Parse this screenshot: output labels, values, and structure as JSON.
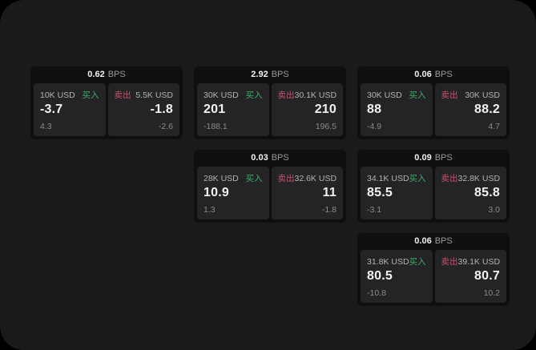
{
  "labels": {
    "bps_unit": "BPS",
    "buy": "买入",
    "sell": "卖出"
  },
  "colors": {
    "outer_bg": "#000000",
    "page_bg": "#1a1a1b",
    "card_bg": "#0f0f10",
    "panel_bg": "#242426",
    "buy_green": "#3fae6a",
    "sell_red": "#c2546a",
    "text_primary": "#f2f2f2",
    "text_secondary": "#b3b3b3",
    "text_muted": "#8b8b8b"
  },
  "cards": [
    {
      "bps": "0.62",
      "buy": {
        "size": "10K USD",
        "price": "-3.7",
        "sub": "4.3"
      },
      "sell": {
        "size": "5.5K USD",
        "price": "-1.8",
        "sub": "-2.6"
      }
    },
    {
      "bps": "2.92",
      "buy": {
        "size": "30K USD",
        "price": "201",
        "sub": "-188.1"
      },
      "sell": {
        "size": "30.1K USD",
        "price": "210",
        "sub": "196.5"
      }
    },
    {
      "bps": "0.06",
      "buy": {
        "size": "30K USD",
        "price": "88",
        "sub": "-4.9"
      },
      "sell": {
        "size": "30K USD",
        "price": "88.2",
        "sub": "4.7"
      }
    },
    {
      "bps": "0.03",
      "buy": {
        "size": "28K USD",
        "price": "10.9",
        "sub": "1.3"
      },
      "sell": {
        "size": "32.6K USD",
        "price": "11",
        "sub": "-1.8"
      }
    },
    {
      "bps": "0.09",
      "buy": {
        "size": "34.1K USD",
        "price": "85.5",
        "sub": "-3.1"
      },
      "sell": {
        "size": "32.8K USD",
        "price": "85.8",
        "sub": "3.0"
      }
    },
    {
      "bps": "0.06",
      "buy": {
        "size": "31.8K USD",
        "price": "80.5",
        "sub": "-10.8"
      },
      "sell": {
        "size": "39.1K USD",
        "price": "80.7",
        "sub": "10.2"
      }
    }
  ]
}
